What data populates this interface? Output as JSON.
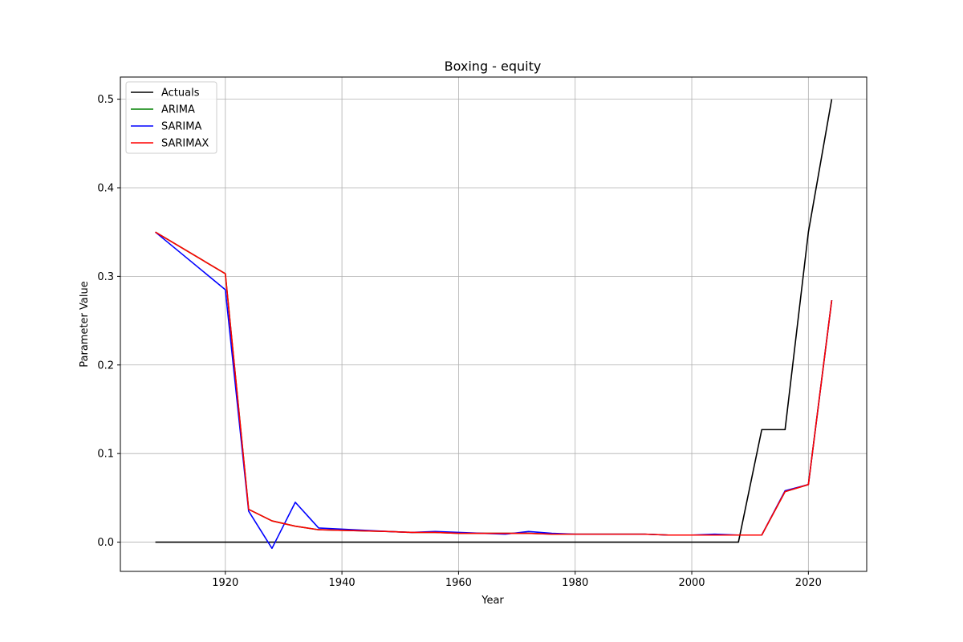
{
  "chart_data": {
    "type": "line",
    "title": "Boxing - equity",
    "xlabel": "Year",
    "ylabel": "Parameter Value",
    "xlim": [
      1902,
      2030
    ],
    "ylim": [
      -0.033,
      0.525
    ],
    "xticks": [
      1920,
      1940,
      1960,
      1980,
      2000,
      2020
    ],
    "yticks": [
      0.0,
      0.1,
      0.2,
      0.3,
      0.4,
      0.5
    ],
    "ytick_labels": [
      "0.0",
      "0.1",
      "0.2",
      "0.3",
      "0.4",
      "0.5"
    ],
    "grid": true,
    "legend_position": "upper-left",
    "series": [
      {
        "name": "Actuals",
        "color": "#000000",
        "x": [
          1908,
          1912,
          1920,
          1924,
          1928,
          1932,
          1936,
          1948,
          1952,
          1956,
          1960,
          1964,
          1968,
          1972,
          1976,
          1980,
          1984,
          1988,
          1992,
          1996,
          2000,
          2004,
          2008,
          2012,
          2016,
          2020,
          2024
        ],
        "y": [
          0,
          0,
          0,
          0,
          0,
          0,
          0,
          0,
          0,
          0,
          0,
          0,
          0,
          0,
          0,
          0,
          0,
          0,
          0,
          0,
          0,
          0,
          0,
          0.127,
          0.127,
          0.35,
          0.5
        ]
      },
      {
        "name": "ARIMA",
        "color": "#008000",
        "x": [
          1908,
          1920,
          1924,
          1928,
          1932,
          1936,
          1948,
          1952,
          1956,
          1960,
          1964,
          1968,
          1972,
          1976,
          1980,
          1984,
          1988,
          1992,
          1996,
          2000,
          2004,
          2008,
          2012,
          2016,
          2020,
          2024
        ],
        "y": [
          0.35,
          0.303,
          0.037,
          0.024,
          0.018,
          0.014,
          0.012,
          0.011,
          0.011,
          0.01,
          0.01,
          0.01,
          0.01,
          0.009,
          0.009,
          0.009,
          0.009,
          0.009,
          0.008,
          0.008,
          0.008,
          0.008,
          0.008,
          0.057,
          0.065,
          0.273
        ]
      },
      {
        "name": "SARIMA",
        "color": "#0000ff",
        "x": [
          1908,
          1920,
          1924,
          1928,
          1932,
          1936,
          1948,
          1952,
          1956,
          1960,
          1964,
          1968,
          1972,
          1976,
          1980,
          1984,
          1988,
          1992,
          1996,
          2000,
          2004,
          2008,
          2012,
          2016,
          2020,
          2024
        ],
        "y": [
          0.35,
          0.285,
          0.035,
          -0.007,
          0.045,
          0.016,
          0.012,
          0.011,
          0.012,
          0.011,
          0.01,
          0.009,
          0.012,
          0.01,
          0.009,
          0.009,
          0.009,
          0.009,
          0.008,
          0.008,
          0.009,
          0.008,
          0.008,
          0.058,
          0.065,
          0.273
        ]
      },
      {
        "name": "SARIMAX",
        "color": "#ff0000",
        "x": [
          1908,
          1920,
          1924,
          1928,
          1932,
          1936,
          1948,
          1952,
          1956,
          1960,
          1964,
          1968,
          1972,
          1976,
          1980,
          1984,
          1988,
          1992,
          1996,
          2000,
          2004,
          2008,
          2012,
          2016,
          2020,
          2024
        ],
        "y": [
          0.35,
          0.303,
          0.037,
          0.024,
          0.018,
          0.014,
          0.012,
          0.011,
          0.011,
          0.01,
          0.01,
          0.01,
          0.01,
          0.009,
          0.009,
          0.009,
          0.009,
          0.009,
          0.008,
          0.008,
          0.008,
          0.008,
          0.008,
          0.057,
          0.065,
          0.273
        ]
      }
    ]
  }
}
